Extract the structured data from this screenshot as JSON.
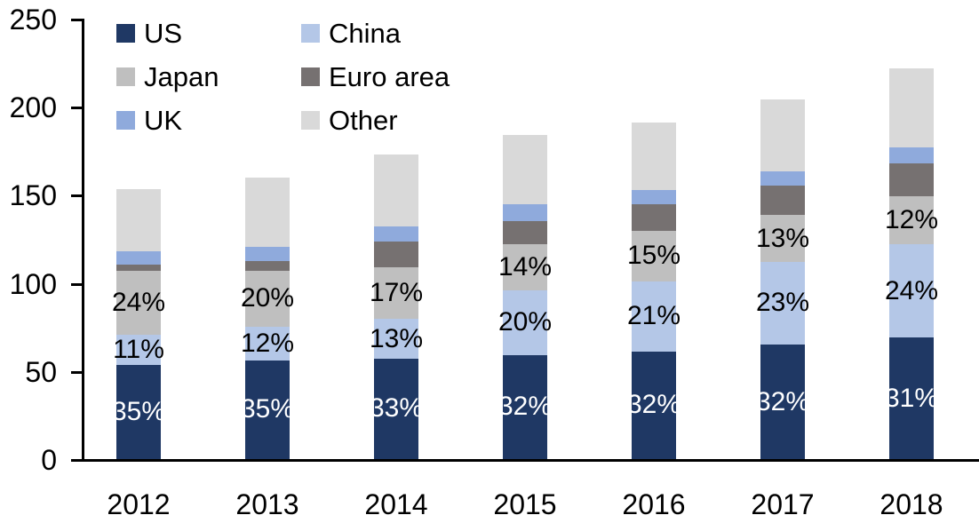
{
  "chart_data": {
    "type": "bar",
    "stacked": true,
    "title": "",
    "xlabel": "",
    "ylabel": "",
    "categories": [
      "2012",
      "2013",
      "2014",
      "2015",
      "2016",
      "2017",
      "2018"
    ],
    "series": [
      {
        "name": "US",
        "color": "#1F3864",
        "values": [
          53.5,
          56.0,
          57.0,
          59.0,
          61.0,
          65.0,
          69.0
        ],
        "pct_labels": [
          "35%",
          "35%",
          "33%",
          "32%",
          "32%",
          "32%",
          "31%"
        ],
        "label_color": "#FFFFFF"
      },
      {
        "name": "China",
        "color": "#B4C7E7",
        "values": [
          17.0,
          19.0,
          22.5,
          37.0,
          40.0,
          47.0,
          53.0
        ],
        "pct_labels": [
          "11%",
          "12%",
          "13%",
          "20%",
          "21%",
          "23%",
          "24%"
        ],
        "label_color": "#000000"
      },
      {
        "name": "Japan",
        "color": "#BFBFBF",
        "values": [
          36.5,
          32.0,
          29.5,
          26.0,
          28.5,
          26.5,
          27.0
        ],
        "pct_labels": [
          "24%",
          "20%",
          "17%",
          "14%",
          "15%",
          "13%",
          "12%"
        ],
        "label_color": "#000000"
      },
      {
        "name": "Euro area",
        "color": "#767171",
        "values": [
          3.5,
          5.5,
          14.5,
          13.0,
          15.0,
          16.5,
          19.0
        ]
      },
      {
        "name": "UK",
        "color": "#8FAADC",
        "values": [
          7.5,
          8.0,
          8.5,
          9.5,
          8.0,
          8.5,
          9.0
        ]
      },
      {
        "name": "Other",
        "color": "#D9D9D9",
        "values": [
          35.0,
          39.5,
          41.0,
          39.5,
          38.5,
          40.5,
          45.0
        ]
      }
    ],
    "totals": [
      153,
      160,
      173,
      184,
      191,
      204,
      222
    ],
    "stack_order_bottom_to_top": [
      "US",
      "China",
      "Japan",
      "Euro area",
      "UK",
      "Other"
    ],
    "y_axis": {
      "min": 0,
      "max": 250,
      "tick_step": 50,
      "ticks": [
        0,
        50,
        100,
        150,
        200,
        250
      ]
    },
    "legend": {
      "position": "top-left",
      "columns": 2,
      "order": [
        "US",
        "China",
        "Japan",
        "Euro area",
        "UK",
        "Other"
      ]
    },
    "grid": false,
    "axis_color": "#000000"
  }
}
